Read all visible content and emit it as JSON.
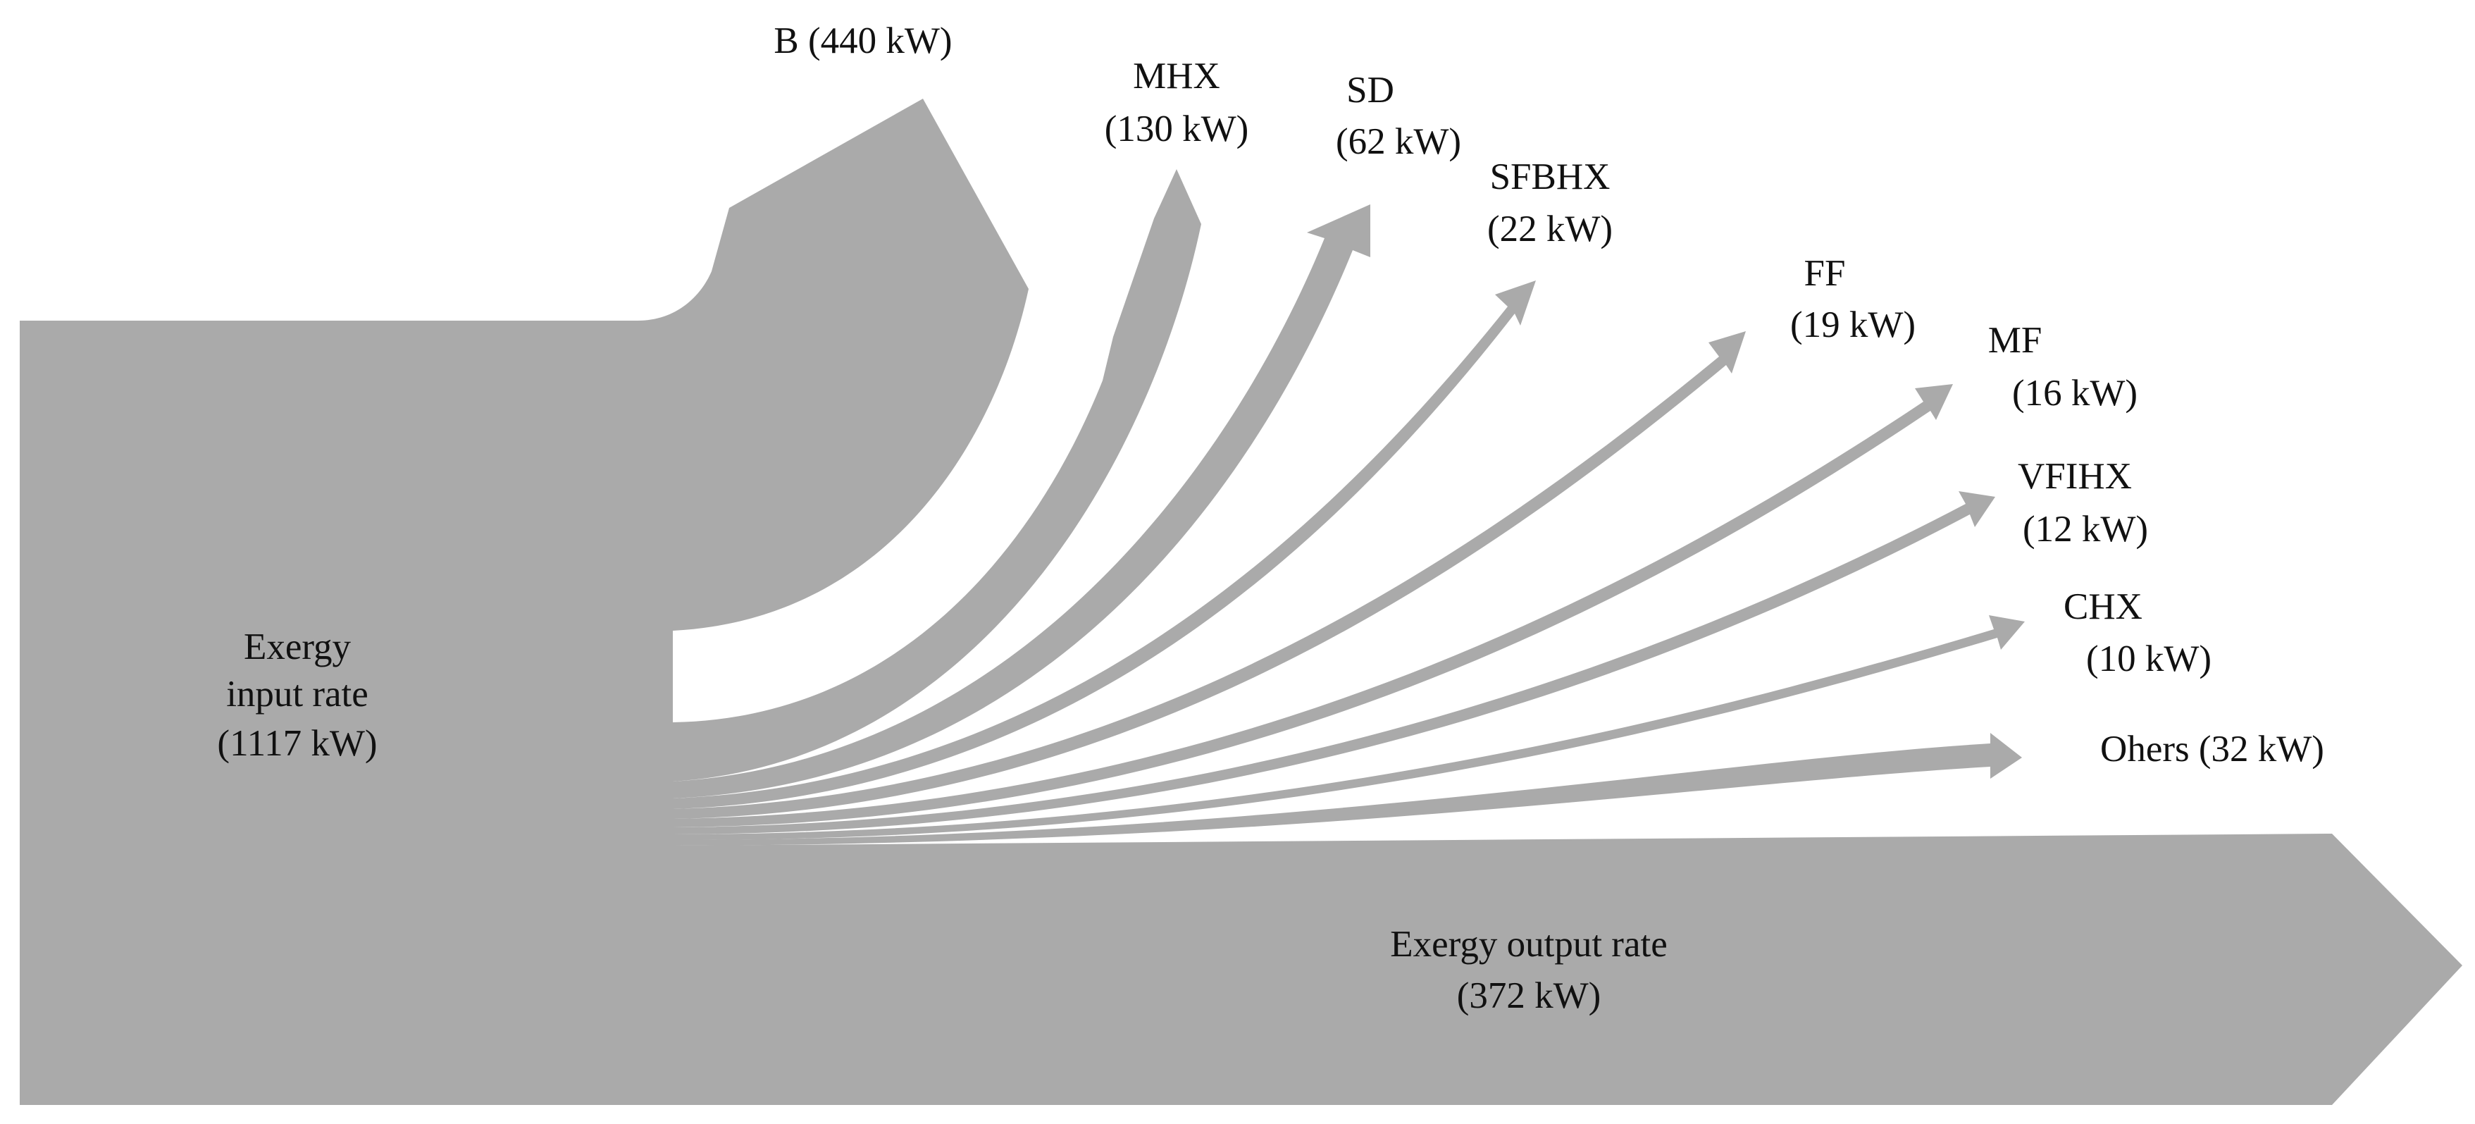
{
  "title": "",
  "flow_color": "#aaaaaa",
  "text_color": "#111111",
  "input": {
    "label_lines": [
      "Exergy",
      "input rate",
      "(1117 kW)"
    ],
    "value_kw": 1117
  },
  "output": {
    "label_lines": [
      "Exergy output rate",
      "(372 kW)"
    ],
    "value_kw": 372
  },
  "losses": [
    {
      "id": "b",
      "lines": [
        "B (440 kW)"
      ],
      "value_kw": 440
    },
    {
      "id": "mhx",
      "lines": [
        "MHX",
        "(130 kW)"
      ],
      "value_kw": 130
    },
    {
      "id": "sd",
      "lines": [
        "SD",
        "(62 kW)"
      ],
      "value_kw": 62
    },
    {
      "id": "sfbhx",
      "lines": [
        "SFBHX",
        "(22 kW)"
      ],
      "value_kw": 22
    },
    {
      "id": "ff",
      "lines": [
        "FF",
        "(19 kW)"
      ],
      "value_kw": 19
    },
    {
      "id": "mf",
      "lines": [
        "MF",
        "(16 kW)"
      ],
      "value_kw": 16
    },
    {
      "id": "vfihx",
      "lines": [
        "VFIHX",
        "(12 kW)"
      ],
      "value_kw": 12
    },
    {
      "id": "chx",
      "lines": [
        "CHX",
        "(10 kW)"
      ],
      "value_kw": 10
    },
    {
      "id": "others",
      "lines": [
        "Ohers (32 kW)"
      ],
      "value_kw": 32
    }
  ]
}
